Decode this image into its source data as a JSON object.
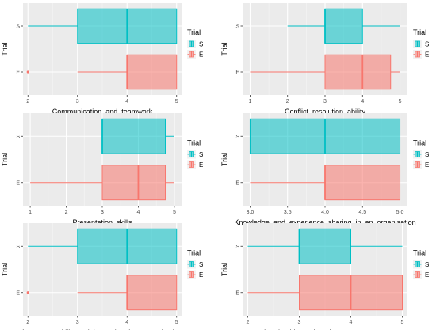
{
  "colors": {
    "S": "#00BFC4",
    "E": "#F8766D",
    "panel": "#EBEBEB",
    "grid_major": "#FFFFFF",
    "grid_minor": "#F5F5F5"
  },
  "chart_data": [
    {
      "type": "boxplot",
      "xlabel": "Communication_and_teamwork",
      "ylabel": "Trial",
      "xlim": [
        1.9,
        5.1
      ],
      "xticks": [
        2,
        3,
        4,
        5
      ],
      "categories": [
        "E",
        "S"
      ],
      "legend": {
        "title": "Trial",
        "entries": [
          "S",
          "E"
        ],
        "position": "right"
      },
      "series": [
        {
          "name": "S",
          "whisker_low": 2,
          "q1": 3,
          "median": 4,
          "q3": 5,
          "whisker_high": 5,
          "outliers": []
        },
        {
          "name": "E",
          "whisker_low": 3,
          "q1": 4,
          "median": 4,
          "q3": 5,
          "whisker_high": 5,
          "outliers": [
            2
          ]
        }
      ]
    },
    {
      "type": "boxplot",
      "xlabel": "Conflict_resolution_ability",
      "ylabel": "Trial",
      "xlim": [
        0.8,
        5.2
      ],
      "xticks": [
        1,
        2,
        3,
        4,
        5
      ],
      "categories": [
        "E",
        "S"
      ],
      "legend": {
        "title": "Trial",
        "entries": [
          "S",
          "E"
        ],
        "position": "right"
      },
      "series": [
        {
          "name": "S",
          "whisker_low": 2,
          "q1": 3,
          "median": 3,
          "q3": 4,
          "whisker_high": 5,
          "outliers": []
        },
        {
          "name": "E",
          "whisker_low": 1,
          "q1": 3,
          "median": 4,
          "q3": 4.75,
          "whisker_high": 5,
          "outliers": []
        }
      ]
    },
    {
      "type": "boxplot",
      "xlabel": "Presentation_skills",
      "ylabel": "Trial",
      "xlim": [
        0.8,
        5.2
      ],
      "xticks": [
        1,
        2,
        3,
        4,
        5
      ],
      "categories": [
        "E",
        "S"
      ],
      "legend": {
        "title": "Trial",
        "entries": [
          "S",
          "E"
        ],
        "position": "right"
      },
      "series": [
        {
          "name": "S",
          "whisker_low": 3,
          "q1": 3,
          "median": 3,
          "q3": 4.75,
          "whisker_high": 5,
          "outliers": []
        },
        {
          "name": "E",
          "whisker_low": 1,
          "q1": 3,
          "median": 4,
          "q3": 4.75,
          "whisker_high": 5,
          "outliers": []
        }
      ]
    },
    {
      "type": "boxplot",
      "xlabel": "Knowledge_and_experience_sharing_in_an_organisation",
      "ylabel": "Trial",
      "xlim": [
        2.9,
        5.1
      ],
      "xticks": [
        3.0,
        3.5,
        4.0,
        4.5,
        5.0
      ],
      "xtick_labels": [
        "3.0",
        "3.5",
        "4.0",
        "4.5",
        "5.0"
      ],
      "categories": [
        "E",
        "S"
      ],
      "legend": {
        "title": "Trial",
        "entries": [
          "S",
          "E"
        ],
        "position": "right"
      },
      "series": [
        {
          "name": "S",
          "whisker_low": 3,
          "q1": 3,
          "median": 4,
          "q3": 5,
          "whisker_high": 5,
          "outliers": []
        },
        {
          "name": "E",
          "whisker_low": 3,
          "q1": 4,
          "median": 4,
          "q3": 5,
          "whisker_high": 5,
          "outliers": []
        }
      ]
    },
    {
      "type": "boxplot",
      "xlabel": "Language_skills_and_intercultural_communication",
      "ylabel": "Trial",
      "xlim": [
        1.9,
        5.1
      ],
      "xticks": [
        2,
        3,
        4,
        5
      ],
      "categories": [
        "E",
        "S"
      ],
      "legend": {
        "title": "Trial",
        "entries": [
          "S",
          "E"
        ],
        "position": "right"
      },
      "series": [
        {
          "name": "S",
          "whisker_low": 2,
          "q1": 3,
          "median": 4,
          "q3": 5,
          "whisker_high": 5,
          "outliers": []
        },
        {
          "name": "E",
          "whisker_low": 3,
          "q1": 4,
          "median": 4,
          "q3": 5,
          "whisker_high": 5,
          "outliers": [
            2
          ]
        }
      ]
    },
    {
      "type": "boxplot",
      "xlabel": "Leadership_and_project_management",
      "ylabel": "Trial",
      "xlim": [
        1.9,
        5.1
      ],
      "xticks": [
        2,
        3,
        4,
        5
      ],
      "categories": [
        "E",
        "S"
      ],
      "legend": {
        "title": "Trial",
        "entries": [
          "S",
          "E"
        ],
        "position": "right"
      },
      "series": [
        {
          "name": "S",
          "whisker_low": 2,
          "q1": 3,
          "median": 3,
          "q3": 4,
          "whisker_high": 5,
          "outliers": []
        },
        {
          "name": "E",
          "whisker_low": 2,
          "q1": 3,
          "median": 4,
          "q3": 5,
          "whisker_high": 5,
          "outliers": []
        }
      ]
    }
  ]
}
